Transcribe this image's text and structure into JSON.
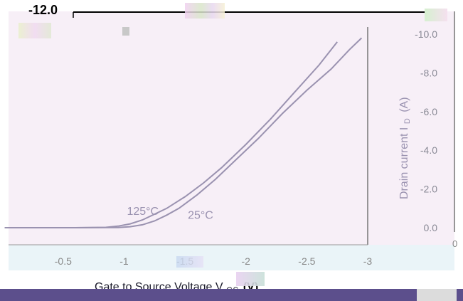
{
  "chart_data": {
    "type": "line",
    "xlabel": "Gate to  Source Voltage V",
    "xlabel_sub": "GS",
    "xlabel_unit": "(V)",
    "ylabel": "Drain current I",
    "ylabel_sub": "D",
    "ylabel_unit": "(A)",
    "top_left_label": "-12.0",
    "x_ticks": [
      {
        "value": -0.5,
        "label": "-0.5"
      },
      {
        "value": -1.0,
        "label": "-1"
      },
      {
        "value": -1.5,
        "label": "-1.5"
      },
      {
        "value": -2.0,
        "label": "-2"
      },
      {
        "value": -2.5,
        "label": "-2.5"
      },
      {
        "value": -3.0,
        "label": "-3"
      }
    ],
    "y_ticks": [
      {
        "value": 0.0,
        "label": "0.0"
      },
      {
        "value": -2.0,
        "label": "-2.0"
      },
      {
        "value": -4.0,
        "label": "-4.0"
      },
      {
        "value": -6.0,
        "label": "-6.0"
      },
      {
        "value": -8.0,
        "label": "-8.0"
      },
      {
        "value": -10.0,
        "label": "-10.0"
      }
    ],
    "right_edge_label": "0",
    "xlim": [
      0.0,
      -3.0
    ],
    "ylim": [
      0.0,
      -12.0
    ],
    "series": [
      {
        "name": "125°C",
        "color": "#9a92b0",
        "x": [
          -0.6,
          -0.85,
          -0.95,
          -1.05,
          -1.15,
          -1.25,
          -1.35,
          -1.5,
          -1.65,
          -1.8,
          -2.0,
          -2.2,
          -2.4,
          -2.6,
          -2.75
        ],
        "y": [
          0.0,
          -0.02,
          -0.08,
          -0.2,
          -0.4,
          -0.7,
          -1.0,
          -1.6,
          -2.3,
          -3.1,
          -4.3,
          -5.6,
          -7.0,
          -8.4,
          -9.6
        ]
      },
      {
        "name": "25°C",
        "color": "#9a92b0",
        "x": [
          -0.6,
          -0.95,
          -1.05,
          -1.15,
          -1.25,
          -1.35,
          -1.45,
          -1.6,
          -1.75,
          -1.9,
          -2.1,
          -2.3,
          -2.5,
          -2.7,
          -2.85,
          -2.95
        ],
        "y": [
          0.0,
          -0.01,
          -0.05,
          -0.15,
          -0.35,
          -0.65,
          -1.0,
          -1.7,
          -2.5,
          -3.4,
          -4.6,
          -5.9,
          -7.1,
          -8.2,
          -9.2,
          -9.8
        ]
      }
    ],
    "annotations": [
      {
        "text": "125°C",
        "x": -1.0,
        "y": -0.8
      },
      {
        "text": "25°C",
        "x": -1.5,
        "y": -0.6
      }
    ],
    "grid": false
  }
}
